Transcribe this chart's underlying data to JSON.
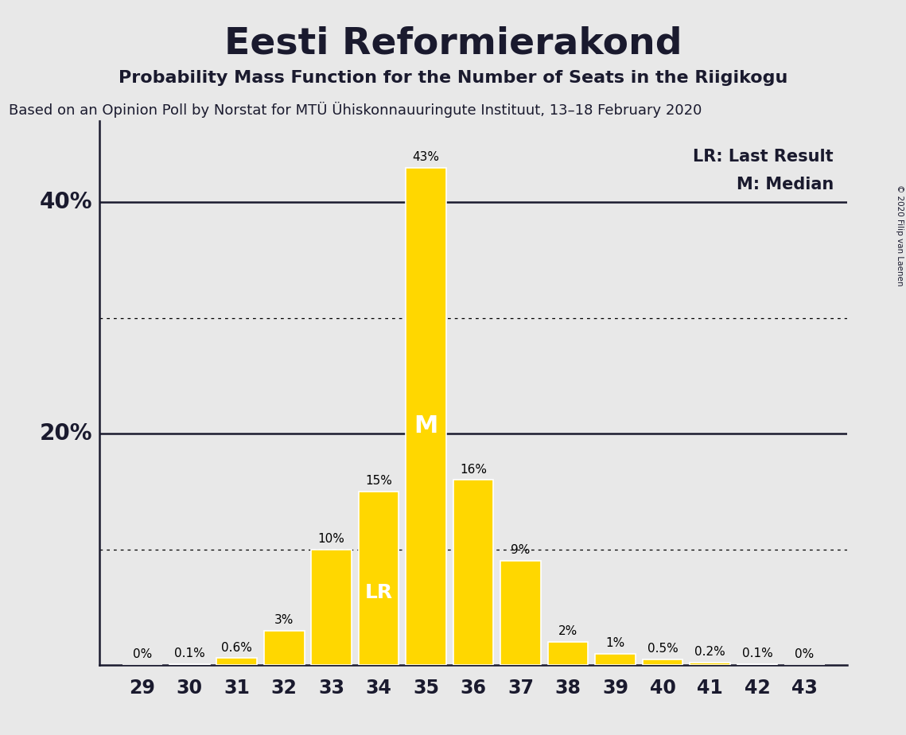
{
  "title": "Eesti Reformierakond",
  "subtitle": "Probability Mass Function for the Number of Seats in the Riigikogu",
  "source_line": "Based on an Opinion Poll by Norstat for MTÜ Ühiskonnauuringute Instituut, 13–18 February 2020",
  "copyright": "© 2020 Filip van Laenen",
  "seats": [
    29,
    30,
    31,
    32,
    33,
    34,
    35,
    36,
    37,
    38,
    39,
    40,
    41,
    42,
    43
  ],
  "probabilities": [
    0.0,
    0.1,
    0.6,
    3.0,
    10.0,
    15.0,
    43.0,
    16.0,
    9.0,
    2.0,
    1.0,
    0.5,
    0.2,
    0.1,
    0.0
  ],
  "bar_color": "#FFD700",
  "bar_edge_color": "#FFFFFF",
  "background_color": "#E8E8E8",
  "last_result_seat": 34,
  "median_seat": 35,
  "label_LR": "LR",
  "label_M": "M",
  "legend_LR": "LR: Last Result",
  "legend_M": "M: Median",
  "ylim_max": 47,
  "dotted_lines": [
    10,
    30
  ],
  "solid_lines": [
    20,
    40
  ],
  "title_fontsize": 34,
  "subtitle_fontsize": 16,
  "source_fontsize": 13,
  "ylabel_fontsize": 20,
  "tick_fontsize": 17,
  "pct_label_fontsize": 11,
  "legend_fontsize": 15,
  "inside_label_fontsize_LR": 18,
  "inside_label_fontsize_M": 22
}
